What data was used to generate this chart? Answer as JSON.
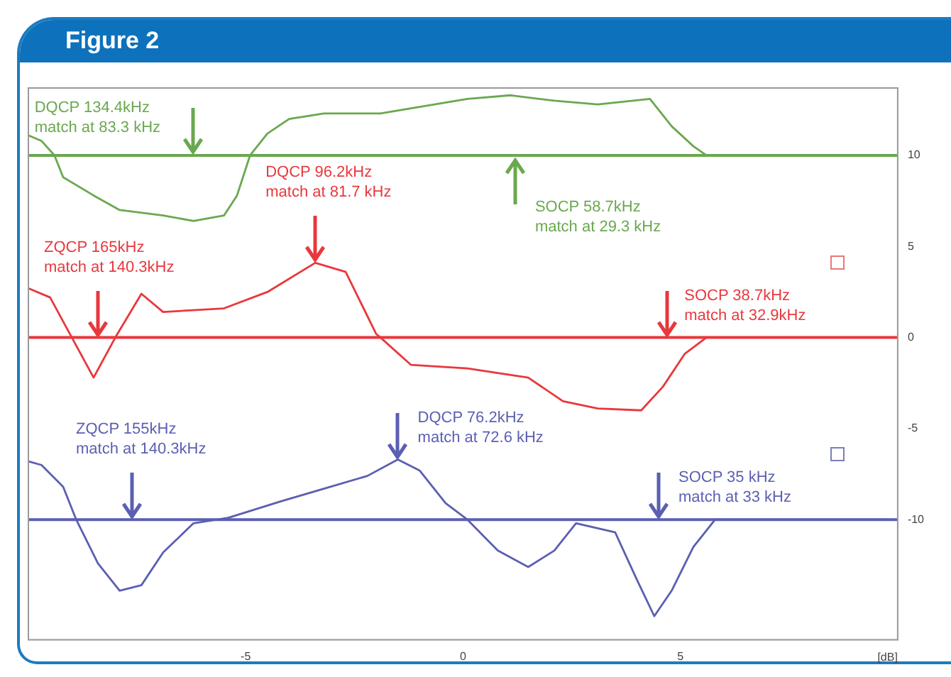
{
  "chart_data": {
    "type": "line",
    "title": "Figure 2",
    "xlabel": "[dB]",
    "xlim": [
      -10,
      10
    ],
    "ylim": [
      -16.6,
      13.7
    ],
    "xticks": [
      -5,
      0,
      5
    ],
    "yticks": [
      -10,
      -5,
      0,
      5,
      10
    ],
    "grid": false,
    "legend": false,
    "marker": "none",
    "line_style": "solid",
    "series": [
      {
        "color": "#6aa84f",
        "x": [
          -10,
          -9.7,
          -9.4,
          -9.2,
          -8.5,
          -7.9,
          -6.9,
          -6.2,
          -5.5,
          -5.2,
          -4.9,
          -4.5,
          -4.0,
          -3.2,
          -1.9,
          -0.9,
          0.1,
          1.1,
          2.1,
          3.1,
          4.3,
          4.8,
          5.3,
          5.6,
          9.8
        ],
        "values": [
          11.1,
          10.8,
          10,
          8.8,
          7.8,
          7.0,
          6.7,
          6.4,
          6.7,
          7.8,
          10,
          11.2,
          12.0,
          12.3,
          12.3,
          12.7,
          13.1,
          13.3,
          13.0,
          12.8,
          13.1,
          11.6,
          10.5,
          10,
          10
        ]
      },
      {
        "color": "#e8383d",
        "x": [
          -10,
          -9.5,
          -9.0,
          -8.5,
          -8.0,
          -7.4,
          -6.9,
          -5.5,
          -4.5,
          -3.4,
          -2.7,
          -2.0,
          -1.9,
          -1.2,
          0.1,
          1.5,
          2.3,
          3.1,
          4.1,
          4.6,
          5.1,
          5.6,
          9.8
        ],
        "values": [
          2.7,
          2.2,
          0,
          -2.2,
          0,
          2.4,
          1.4,
          1.6,
          2.5,
          4.1,
          3.6,
          0.2,
          0,
          -1.5,
          -1.7,
          -2.2,
          -3.5,
          -3.9,
          -4.0,
          -2.7,
          -0.9,
          0,
          0
        ]
      },
      {
        "color": "#5b5fb2",
        "x": [
          -10,
          -9.7,
          -9.2,
          -8.9,
          -8.4,
          -7.9,
          -7.4,
          -6.9,
          -6.2,
          -5.4,
          -4.2,
          -3.2,
          -2.2,
          -1.5,
          -1.0,
          -0.4,
          0.1,
          0.8,
          1.5,
          2.1,
          2.6,
          3.5,
          4.0,
          4.4,
          4.8,
          5.3,
          5.8,
          9.8
        ],
        "values": [
          -6.8,
          -7.0,
          -8.2,
          -10,
          -12.4,
          -13.9,
          -13.6,
          -11.8,
          -10.2,
          -9.9,
          -9.0,
          -8.3,
          -7.6,
          -6.7,
          -7.3,
          -9.1,
          -10,
          -11.7,
          -12.6,
          -11.7,
          -10.2,
          -10.7,
          -13.3,
          -15.3,
          -13.9,
          -11.5,
          -10,
          -10
        ]
      }
    ],
    "ref_lines": [
      {
        "axis": "y",
        "value": 10,
        "color": "#6aa84f"
      },
      {
        "axis": "y",
        "value": 0,
        "color": "#e8383d"
      },
      {
        "axis": "y",
        "value": -10,
        "color": "#5b5fb2"
      }
    ],
    "annotations": [
      {
        "text": "DQCP 134.4kHz\nmatch at 83.3 kHz",
        "x": -6.2,
        "y": 10
      },
      {
        "text": "SOCP 58.7kHz\nmatch at 29.3 kHz",
        "x": 1.2,
        "y": 10
      },
      {
        "text": "DQCP 96.2kHz\nmatch at 81.7 kHz",
        "x": -3.4,
        "y": 4.1
      },
      {
        "text": "ZQCP 165kHz\nmatch at 140.3kHz",
        "x": -8.4,
        "y": 0
      },
      {
        "text": "SOCP 38.7kHz\nmatch at 32.9kHz",
        "x": 4.7,
        "y": 0
      },
      {
        "text": "ZQCP 155kHz\nmatch at 140.3kHz",
        "x": -7.6,
        "y": -10
      },
      {
        "text": "DQCP 76.2kHz\nmatch at 72.6 kHz",
        "x": -1.5,
        "y": -6.7
      },
      {
        "text": "SOCP 35 kHz\nmatch at 33 kHz",
        "x": 4.5,
        "y": -10
      }
    ]
  }
}
